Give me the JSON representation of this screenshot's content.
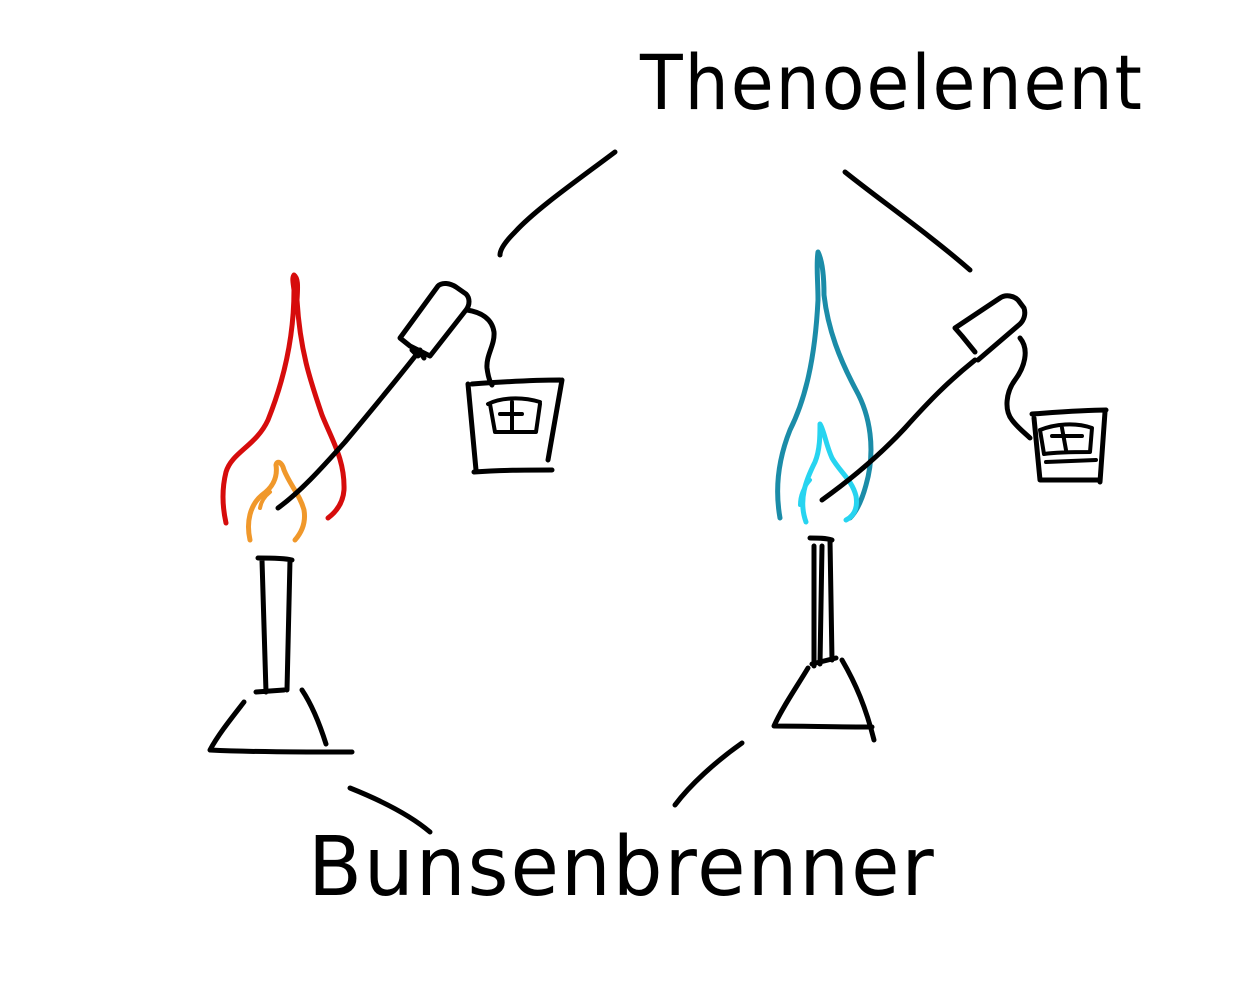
{
  "labels": {
    "top": "Thenoelenent",
    "bottom": "Bunsenbrenner"
  },
  "colors": {
    "ink": "#000000",
    "flame_red_outer": "#d60c0c",
    "flame_orange_inner": "#f0982b",
    "flame_blue_outer": "#1b8ca8",
    "flame_cyan_inner": "#27d4f0",
    "background": "#ffffff"
  },
  "icons": {
    "left_burner": "bunsen-burner-icon",
    "right_burner": "bunsen-burner-icon",
    "left_meter": "voltmeter-icon",
    "right_meter": "voltmeter-icon"
  }
}
